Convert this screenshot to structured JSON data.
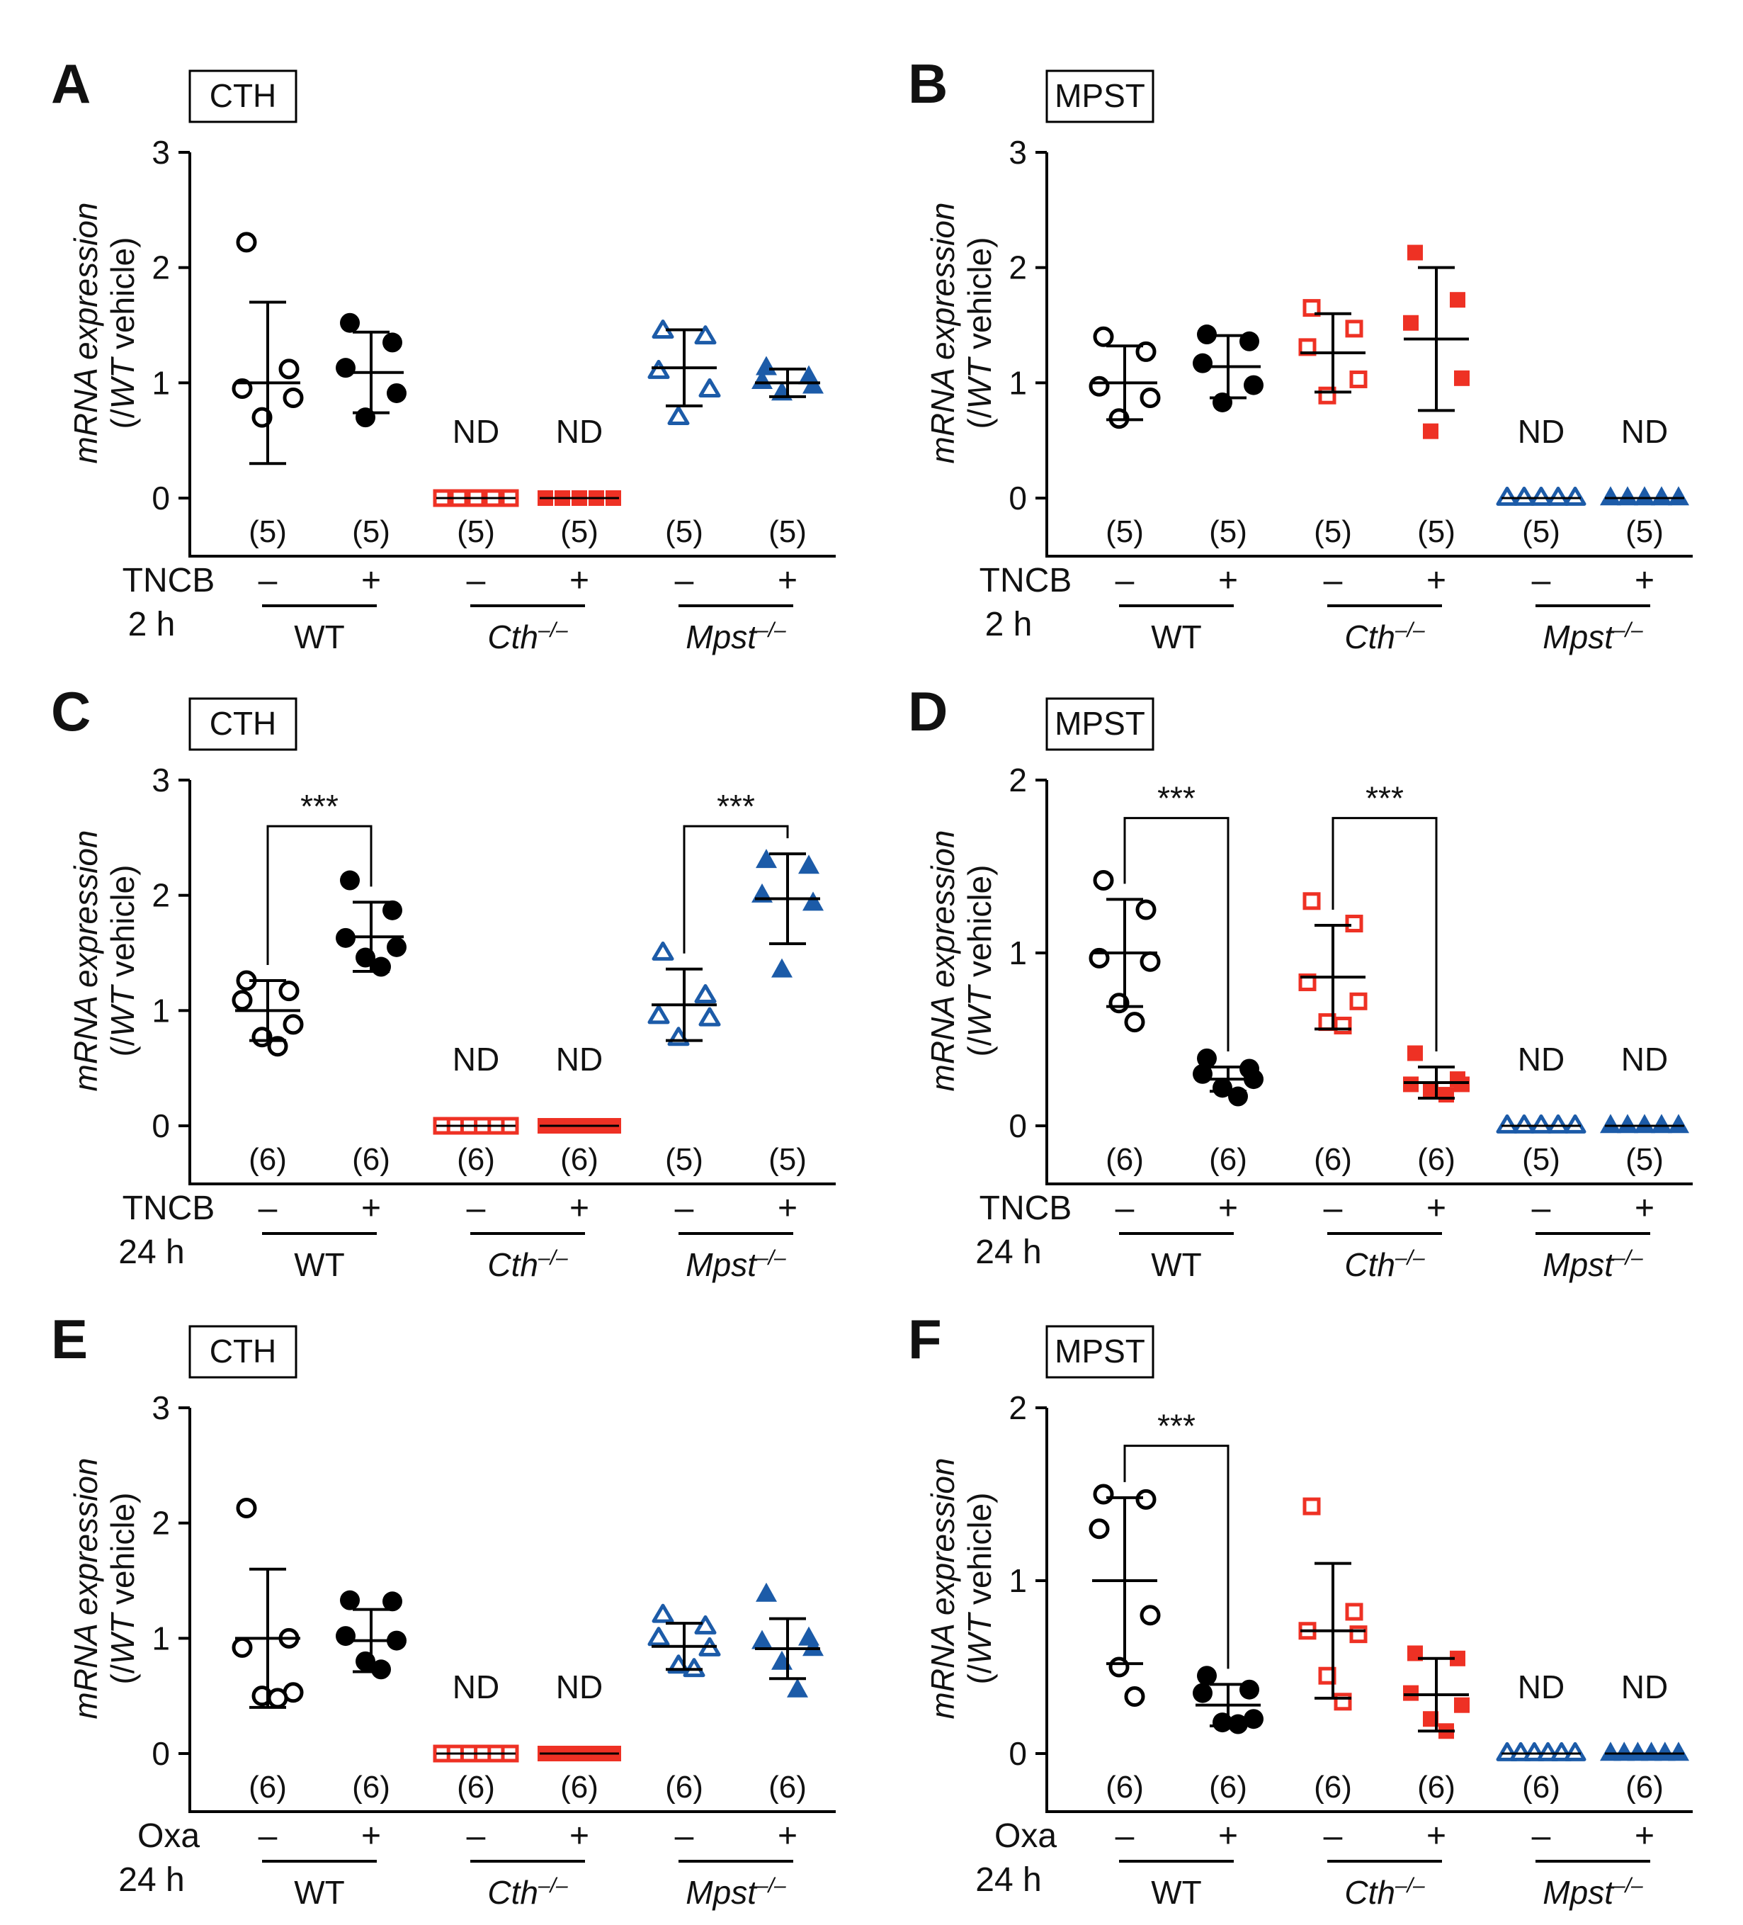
{
  "colors": {
    "wt": "#000000",
    "cth": "#ee3124",
    "mpst": "#1c5ba8",
    "axis": "#000000"
  },
  "labels": {
    "ylabel_line1": "mRNA expression",
    "ylabel_line2_pre": "(/",
    "ylabel_line2_it": "WT",
    "ylabel_line2_post": " vehicle)",
    "minus": "–",
    "plus": "+",
    "nd": "ND",
    "sig": "***",
    "group_wt": "WT",
    "group_cth_base": "Cth",
    "group_cth_sup": "–/–",
    "group_mpst_base": "Mpst",
    "group_mpst_sup": "–/–"
  },
  "chart_data": [
    {
      "panel": "A",
      "gene": "CTH",
      "type": "scatter",
      "ylim": [
        0,
        3
      ],
      "yticks": [
        "0",
        "1",
        "2",
        "3"
      ],
      "treatment_label": "TNCB",
      "time_label": "2 h",
      "groups": [
        {
          "genotype": "WT",
          "treatment": "–",
          "n": "(5)",
          "nd": false,
          "mean": 1.0,
          "sd": 0.7,
          "points": [
            2.22,
            1.12,
            0.95,
            0.87,
            0.7
          ]
        },
        {
          "genotype": "WT",
          "treatment": "+",
          "n": "(5)",
          "nd": false,
          "mean": 1.09,
          "sd": 0.35,
          "points": [
            1.52,
            1.35,
            1.13,
            0.91,
            0.7
          ]
        },
        {
          "genotype": "Cth-/-",
          "treatment": "–",
          "n": "(5)",
          "nd": true,
          "mean": 0,
          "sd": 0,
          "points": [
            0,
            0,
            0,
            0,
            0
          ]
        },
        {
          "genotype": "Cth-/-",
          "treatment": "+",
          "n": "(5)",
          "nd": true,
          "mean": 0,
          "sd": 0,
          "points": [
            0,
            0,
            0,
            0,
            0
          ]
        },
        {
          "genotype": "Mpst-/-",
          "treatment": "–",
          "n": "(5)",
          "nd": false,
          "mean": 1.13,
          "sd": 0.33,
          "points": [
            1.45,
            1.4,
            1.1,
            0.94,
            0.7
          ]
        },
        {
          "genotype": "Mpst-/-",
          "treatment": "+",
          "n": "(5)",
          "nd": false,
          "mean": 1.0,
          "sd": 0.12,
          "points": [
            1.13,
            1.05,
            1.01,
            0.97,
            0.91
          ]
        }
      ],
      "significance": []
    },
    {
      "panel": "B",
      "gene": "MPST",
      "type": "scatter",
      "ylim": [
        0,
        3
      ],
      "yticks": [
        "0",
        "1",
        "2",
        "3"
      ],
      "treatment_label": "TNCB",
      "time_label": "2 h",
      "groups": [
        {
          "genotype": "WT",
          "treatment": "–",
          "n": "(5)",
          "nd": false,
          "mean": 1.0,
          "sd": 0.32,
          "points": [
            1.4,
            1.27,
            0.97,
            0.87,
            0.69
          ]
        },
        {
          "genotype": "WT",
          "treatment": "+",
          "n": "(5)",
          "nd": false,
          "mean": 1.14,
          "sd": 0.27,
          "points": [
            1.42,
            1.36,
            1.17,
            0.98,
            0.83
          ]
        },
        {
          "genotype": "Cth-/-",
          "treatment": "–",
          "n": "(5)",
          "nd": false,
          "mean": 1.26,
          "sd": 0.34,
          "points": [
            1.65,
            1.47,
            1.31,
            1.03,
            0.89
          ]
        },
        {
          "genotype": "Cth-/-",
          "treatment": "+",
          "n": "(5)",
          "nd": false,
          "mean": 1.38,
          "sd": 0.62,
          "points": [
            2.13,
            1.72,
            1.52,
            1.04,
            0.58
          ]
        },
        {
          "genotype": "Mpst-/-",
          "treatment": "–",
          "n": "(5)",
          "nd": true,
          "mean": 0,
          "sd": 0,
          "points": [
            0,
            0,
            0,
            0,
            0
          ]
        },
        {
          "genotype": "Mpst-/-",
          "treatment": "+",
          "n": "(5)",
          "nd": true,
          "mean": 0,
          "sd": 0,
          "points": [
            0,
            0,
            0,
            0,
            0
          ]
        }
      ],
      "significance": []
    },
    {
      "panel": "C",
      "gene": "CTH",
      "type": "scatter",
      "ylim": [
        0,
        3
      ],
      "yticks": [
        "0",
        "1",
        "2",
        "3"
      ],
      "treatment_label": "TNCB",
      "time_label": "24 h",
      "groups": [
        {
          "genotype": "WT",
          "treatment": "–",
          "n": "(6)",
          "nd": false,
          "mean": 1.0,
          "sd": 0.26,
          "points": [
            1.26,
            1.17,
            1.09,
            0.88,
            0.77,
            0.69
          ]
        },
        {
          "genotype": "WT",
          "treatment": "+",
          "n": "(6)",
          "nd": false,
          "mean": 1.64,
          "sd": 0.3,
          "points": [
            2.13,
            1.87,
            1.63,
            1.55,
            1.46,
            1.38
          ]
        },
        {
          "genotype": "Cth-/-",
          "treatment": "–",
          "n": "(6)",
          "nd": true,
          "mean": 0,
          "sd": 0,
          "points": [
            0,
            0,
            0,
            0,
            0,
            0
          ]
        },
        {
          "genotype": "Cth-/-",
          "treatment": "+",
          "n": "(6)",
          "nd": true,
          "mean": 0,
          "sd": 0,
          "points": [
            0,
            0,
            0,
            0,
            0,
            0
          ]
        },
        {
          "genotype": "Mpst-/-",
          "treatment": "–",
          "n": "(5)",
          "nd": false,
          "mean": 1.05,
          "sd": 0.31,
          "points": [
            1.5,
            1.13,
            0.95,
            0.93,
            0.76
          ]
        },
        {
          "genotype": "Mpst-/-",
          "treatment": "+",
          "n": "(5)",
          "nd": false,
          "mean": 1.97,
          "sd": 0.39,
          "points": [
            2.3,
            2.25,
            2.0,
            1.93,
            1.35
          ]
        }
      ],
      "significance": [
        {
          "from": 0,
          "to": 1,
          "y": 2.6,
          "label": "***"
        },
        {
          "from": 4,
          "to": 5,
          "y": 2.6,
          "label": "***"
        }
      ]
    },
    {
      "panel": "D",
      "gene": "MPST",
      "type": "scatter",
      "ylim": [
        0,
        2
      ],
      "yticks": [
        "0",
        "1",
        "2"
      ],
      "treatment_label": "TNCB",
      "time_label": "24 h",
      "groups": [
        {
          "genotype": "WT",
          "treatment": "–",
          "n": "(6)",
          "nd": false,
          "mean": 1.0,
          "sd": 0.31,
          "points": [
            1.42,
            1.25,
            0.97,
            0.95,
            0.71,
            0.6
          ]
        },
        {
          "genotype": "WT",
          "treatment": "+",
          "n": "(6)",
          "nd": false,
          "mean": 0.27,
          "sd": 0.07,
          "points": [
            0.39,
            0.33,
            0.3,
            0.27,
            0.22,
            0.17
          ]
        },
        {
          "genotype": "Cth-/-",
          "treatment": "–",
          "n": "(6)",
          "nd": false,
          "mean": 0.86,
          "sd": 0.3,
          "points": [
            1.3,
            1.17,
            0.83,
            0.72,
            0.6,
            0.58
          ]
        },
        {
          "genotype": "Cth-/-",
          "treatment": "+",
          "n": "(6)",
          "nd": false,
          "mean": 0.25,
          "sd": 0.09,
          "points": [
            0.42,
            0.27,
            0.24,
            0.24,
            0.2,
            0.18
          ]
        },
        {
          "genotype": "Mpst-/-",
          "treatment": "–",
          "n": "(5)",
          "nd": true,
          "mean": 0,
          "sd": 0,
          "points": [
            0,
            0,
            0,
            0,
            0
          ]
        },
        {
          "genotype": "Mpst-/-",
          "treatment": "+",
          "n": "(5)",
          "nd": true,
          "mean": 0,
          "sd": 0,
          "points": [
            0,
            0,
            0,
            0,
            0
          ]
        }
      ],
      "significance": [
        {
          "from": 0,
          "to": 1,
          "y": 1.78,
          "label": "***"
        },
        {
          "from": 2,
          "to": 3,
          "y": 1.78,
          "label": "***"
        }
      ]
    },
    {
      "panel": "E",
      "gene": "CTH",
      "type": "scatter",
      "ylim": [
        0,
        3
      ],
      "yticks": [
        "0",
        "1",
        "2",
        "3"
      ],
      "treatment_label": "Oxa",
      "time_label": "24 h",
      "groups": [
        {
          "genotype": "WT",
          "treatment": "–",
          "n": "(6)",
          "nd": false,
          "mean": 1.0,
          "sd": 0.6,
          "points": [
            2.13,
            1.0,
            0.92,
            0.53,
            0.5,
            0.48
          ]
        },
        {
          "genotype": "WT",
          "treatment": "+",
          "n": "(6)",
          "nd": false,
          "mean": 0.98,
          "sd": 0.27,
          "points": [
            1.33,
            1.32,
            1.02,
            0.98,
            0.8,
            0.73
          ]
        },
        {
          "genotype": "Cth-/-",
          "treatment": "–",
          "n": "(6)",
          "nd": true,
          "mean": 0,
          "sd": 0,
          "points": [
            0,
            0,
            0,
            0,
            0,
            0
          ]
        },
        {
          "genotype": "Cth-/-",
          "treatment": "+",
          "n": "(6)",
          "nd": true,
          "mean": 0,
          "sd": 0,
          "points": [
            0,
            0,
            0,
            0,
            0,
            0
          ]
        },
        {
          "genotype": "Mpst-/-",
          "treatment": "–",
          "n": "(6)",
          "nd": false,
          "mean": 0.93,
          "sd": 0.2,
          "points": [
            1.2,
            1.1,
            1.0,
            0.91,
            0.76,
            0.73
          ]
        },
        {
          "genotype": "Mpst-/-",
          "treatment": "+",
          "n": "(6)",
          "nd": false,
          "mean": 0.91,
          "sd": 0.26,
          "points": [
            1.38,
            1.0,
            0.97,
            0.91,
            0.79,
            0.55
          ]
        }
      ],
      "significance": []
    },
    {
      "panel": "F",
      "gene": "MPST",
      "type": "scatter",
      "ylim": [
        0,
        2
      ],
      "yticks": [
        "0",
        "1",
        "2"
      ],
      "treatment_label": "Oxa",
      "time_label": "24 h",
      "groups": [
        {
          "genotype": "WT",
          "treatment": "–",
          "n": "(6)",
          "nd": false,
          "mean": 1.0,
          "sd": 0.48,
          "points": [
            1.5,
            1.47,
            1.3,
            0.8,
            0.5,
            0.33
          ]
        },
        {
          "genotype": "WT",
          "treatment": "+",
          "n": "(6)",
          "nd": false,
          "mean": 0.28,
          "sd": 0.12,
          "points": [
            0.45,
            0.37,
            0.35,
            0.2,
            0.18,
            0.17
          ]
        },
        {
          "genotype": "Cth-/-",
          "treatment": "–",
          "n": "(6)",
          "nd": false,
          "mean": 0.71,
          "sd": 0.39,
          "points": [
            1.43,
            0.82,
            0.71,
            0.69,
            0.45,
            0.3
          ]
        },
        {
          "genotype": "Cth-/-",
          "treatment": "+",
          "n": "(6)",
          "nd": false,
          "mean": 0.34,
          "sd": 0.21,
          "points": [
            0.58,
            0.55,
            0.35,
            0.28,
            0.2,
            0.13
          ]
        },
        {
          "genotype": "Mpst-/-",
          "treatment": "–",
          "n": "(6)",
          "nd": true,
          "mean": 0,
          "sd": 0,
          "points": [
            0,
            0,
            0,
            0,
            0,
            0
          ]
        },
        {
          "genotype": "Mpst-/-",
          "treatment": "+",
          "n": "(6)",
          "nd": true,
          "mean": 0,
          "sd": 0,
          "points": [
            0,
            0,
            0,
            0,
            0,
            0
          ]
        }
      ],
      "significance": [
        {
          "from": 0,
          "to": 1,
          "y": 1.78,
          "label": "***"
        }
      ]
    }
  ]
}
